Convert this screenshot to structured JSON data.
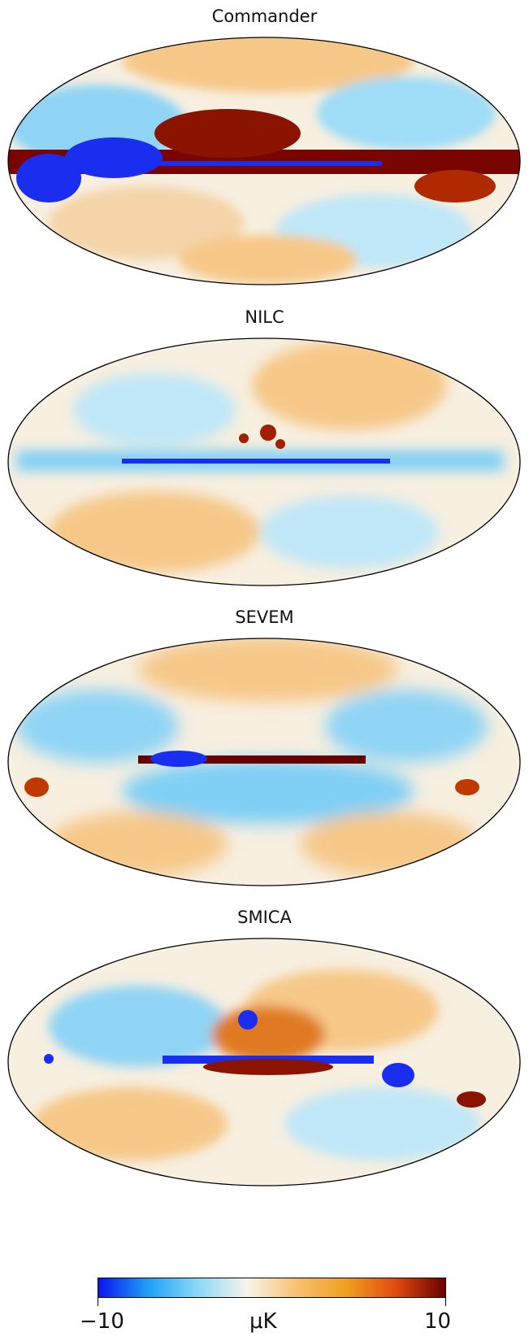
{
  "maps": [
    {
      "title": "Commander"
    },
    {
      "title": "NILC"
    },
    {
      "title": "SEVEM"
    },
    {
      "title": "SMICA"
    }
  ],
  "colorbar": {
    "min_label": "−10",
    "unit_label": "μK",
    "max_label": "10",
    "colors": [
      "#0a14f0",
      "#1ea0f5",
      "#8ad8f8",
      "#f8f4ea",
      "#f8c070",
      "#f0a020",
      "#e04a10",
      "#6a0000"
    ]
  }
}
